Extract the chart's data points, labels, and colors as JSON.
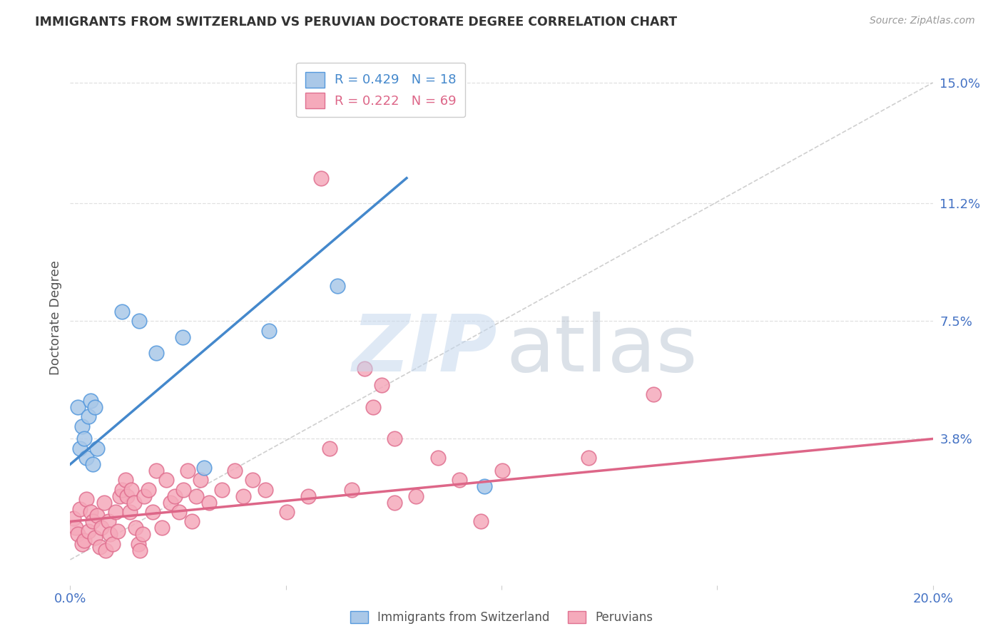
{
  "title": "IMMIGRANTS FROM SWITZERLAND VS PERUVIAN DOCTORATE DEGREE CORRELATION CHART",
  "source": "Source: ZipAtlas.com",
  "ylabel": "Doctorate Degree",
  "right_yticks": [
    3.8,
    7.5,
    11.2,
    15.0
  ],
  "right_yticklabels": [
    "3.8%",
    "7.5%",
    "11.2%",
    "15.0%"
  ],
  "xlim": [
    0.0,
    20.0
  ],
  "ylim": [
    -0.8,
    16.0
  ],
  "legend_r1": "R = 0.429   N = 18",
  "legend_r2": "R = 0.222   N = 69",
  "blue_color": "#aac8e8",
  "pink_color": "#f5aabb",
  "blue_edge_color": "#5599dd",
  "pink_edge_color": "#e07090",
  "blue_line_color": "#4488cc",
  "pink_line_color": "#dd6688",
  "blue_scatter": [
    [
      0.18,
      4.8
    ],
    [
      0.22,
      3.5
    ],
    [
      0.28,
      4.2
    ],
    [
      0.32,
      3.8
    ],
    [
      0.38,
      3.2
    ],
    [
      0.42,
      4.5
    ],
    [
      0.48,
      5.0
    ],
    [
      0.52,
      3.0
    ],
    [
      0.58,
      4.8
    ],
    [
      0.62,
      3.5
    ],
    [
      1.2,
      7.8
    ],
    [
      1.6,
      7.5
    ],
    [
      2.0,
      6.5
    ],
    [
      2.6,
      7.0
    ],
    [
      3.1,
      2.9
    ],
    [
      4.6,
      7.2
    ],
    [
      6.2,
      8.6
    ],
    [
      9.6,
      2.3
    ]
  ],
  "pink_scatter": [
    [
      0.08,
      1.3
    ],
    [
      0.12,
      1.0
    ],
    [
      0.18,
      0.8
    ],
    [
      0.22,
      1.6
    ],
    [
      0.28,
      0.5
    ],
    [
      0.32,
      0.6
    ],
    [
      0.38,
      1.9
    ],
    [
      0.42,
      0.9
    ],
    [
      0.48,
      1.5
    ],
    [
      0.52,
      1.2
    ],
    [
      0.58,
      0.7
    ],
    [
      0.62,
      1.4
    ],
    [
      0.68,
      0.4
    ],
    [
      0.72,
      1.0
    ],
    [
      0.78,
      1.8
    ],
    [
      0.82,
      0.3
    ],
    [
      0.88,
      1.2
    ],
    [
      0.92,
      0.8
    ],
    [
      0.98,
      0.5
    ],
    [
      1.05,
      1.5
    ],
    [
      1.1,
      0.9
    ],
    [
      1.15,
      2.0
    ],
    [
      1.2,
      2.2
    ],
    [
      1.28,
      2.5
    ],
    [
      1.32,
      2.0
    ],
    [
      1.38,
      1.5
    ],
    [
      1.42,
      2.2
    ],
    [
      1.48,
      1.8
    ],
    [
      1.52,
      1.0
    ],
    [
      1.58,
      0.5
    ],
    [
      1.62,
      0.3
    ],
    [
      1.68,
      0.8
    ],
    [
      1.72,
      2.0
    ],
    [
      1.82,
      2.2
    ],
    [
      1.92,
      1.5
    ],
    [
      2.0,
      2.8
    ],
    [
      2.12,
      1.0
    ],
    [
      2.22,
      2.5
    ],
    [
      2.32,
      1.8
    ],
    [
      2.42,
      2.0
    ],
    [
      2.52,
      1.5
    ],
    [
      2.62,
      2.2
    ],
    [
      2.72,
      2.8
    ],
    [
      2.82,
      1.2
    ],
    [
      2.92,
      2.0
    ],
    [
      3.02,
      2.5
    ],
    [
      3.22,
      1.8
    ],
    [
      3.52,
      2.2
    ],
    [
      3.82,
      2.8
    ],
    [
      4.02,
      2.0
    ],
    [
      4.22,
      2.5
    ],
    [
      4.52,
      2.2
    ],
    [
      5.02,
      1.5
    ],
    [
      5.52,
      2.0
    ],
    [
      6.02,
      3.5
    ],
    [
      6.52,
      2.2
    ],
    [
      7.02,
      4.8
    ],
    [
      7.52,
      1.8
    ],
    [
      8.02,
      2.0
    ],
    [
      8.52,
      3.2
    ],
    [
      9.02,
      2.5
    ],
    [
      9.52,
      1.2
    ],
    [
      10.02,
      2.8
    ],
    [
      12.02,
      3.2
    ],
    [
      13.52,
      5.2
    ],
    [
      5.82,
      12.0
    ],
    [
      6.82,
      6.0
    ],
    [
      7.22,
      5.5
    ],
    [
      7.52,
      3.8
    ]
  ],
  "blue_line_x": [
    0.0,
    7.8
  ],
  "blue_line_y": [
    3.0,
    12.0
  ],
  "pink_line_x": [
    0.0,
    20.0
  ],
  "pink_line_y": [
    1.2,
    3.8
  ],
  "diag_line_x": [
    0.0,
    20.0
  ],
  "diag_line_y": [
    0.0,
    15.0
  ],
  "watermark_zip": "ZIP",
  "watermark_atlas": "atlas",
  "watermark_zip_color": "#c5d8ee",
  "watermark_atlas_color": "#b0bece",
  "grid_color": "#dddddd",
  "bg_color": "#ffffff"
}
